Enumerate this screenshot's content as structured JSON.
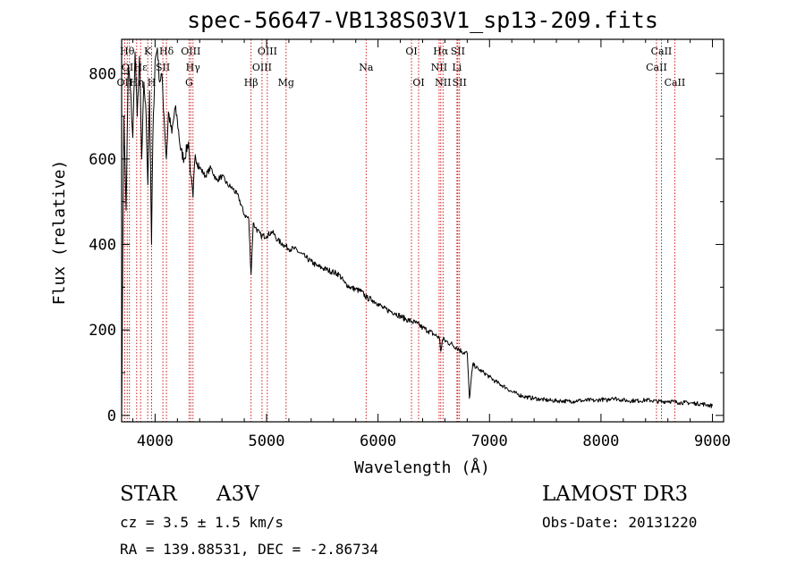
{
  "chart_data": {
    "type": "line",
    "title": "spec-56647-VB138S03V1_sp13-209.fits",
    "xlabel": "Wavelength (Å)",
    "ylabel": "Flux (relative)",
    "xlim": [
      3700,
      9100
    ],
    "ylim": [
      -15,
      880
    ],
    "xticks": [
      4000,
      5000,
      6000,
      7000,
      8000,
      9000
    ],
    "yticks": [
      0,
      200,
      400,
      600,
      800
    ],
    "grid": false,
    "series": [
      {
        "name": "spectrum",
        "x": [
          3700,
          3720,
          3740,
          3760,
          3780,
          3800,
          3820,
          3840,
          3860,
          3880,
          3900,
          3920,
          3935,
          3950,
          3968,
          3980,
          4000,
          4020,
          4040,
          4060,
          4080,
          4101,
          4120,
          4150,
          4180,
          4200,
          4230,
          4260,
          4300,
          4320,
          4340,
          4360,
          4400,
          4450,
          4500,
          4550,
          4600,
          4650,
          4700,
          4750,
          4800,
          4840,
          4861,
          4880,
          4900,
          4950,
          5000,
          5050,
          5100,
          5150,
          5200,
          5250,
          5300,
          5350,
          5400,
          5450,
          5500,
          5550,
          5600,
          5650,
          5700,
          5750,
          5800,
          5850,
          5900,
          5950,
          6000,
          6050,
          6100,
          6150,
          6200,
          6250,
          6300,
          6350,
          6400,
          6450,
          6500,
          6550,
          6563,
          6580,
          6600,
          6650,
          6700,
          6750,
          6800,
          6820,
          6850,
          6900,
          6950,
          7000,
          7050,
          7100,
          7150,
          7200,
          7250,
          7300,
          7350,
          7400,
          7450,
          7500,
          7550,
          7600,
          7650,
          7700,
          7750,
          7800,
          7850,
          7900,
          7950,
          8000,
          8050,
          8100,
          8150,
          8200,
          8250,
          8300,
          8350,
          8400,
          8450,
          8500,
          8550,
          8600,
          8650,
          8700,
          8750,
          8800,
          8850,
          8900,
          8950,
          9000
        ],
        "values": [
          0,
          700,
          480,
          820,
          760,
          650,
          850,
          700,
          840,
          600,
          780,
          700,
          540,
          760,
          400,
          650,
          830,
          860,
          780,
          800,
          700,
          600,
          710,
          660,
          720,
          690,
          620,
          600,
          640,
          560,
          510,
          610,
          580,
          560,
          580,
          550,
          560,
          540,
          530,
          510,
          470,
          460,
          330,
          450,
          440,
          420,
          420,
          430,
          410,
          400,
          390,
          390,
          380,
          370,
          360,
          350,
          345,
          340,
          335,
          330,
          310,
          300,
          295,
          290,
          275,
          270,
          262,
          250,
          245,
          240,
          232,
          225,
          220,
          215,
          205,
          198,
          190,
          182,
          150,
          178,
          175,
          168,
          160,
          150,
          145,
          40,
          120,
          108,
          100,
          90,
          80,
          72,
          65,
          55,
          50,
          45,
          42,
          40,
          38,
          36,
          35,
          34,
          34,
          33,
          33,
          35,
          34,
          36,
          34,
          38,
          35,
          42,
          38,
          36,
          34,
          35,
          34,
          36,
          35,
          33,
          32,
          34,
          32,
          30,
          30,
          29,
          28,
          27,
          25,
          22
        ]
      }
    ],
    "lines": [
      {
        "label": "OII",
        "w": 3727,
        "row": 2
      },
      {
        "label": "Hθ",
        "w": 3750,
        "row": 0
      },
      {
        "label": "OII",
        "w": 3770,
        "row": 1
      },
      {
        "label": "Hη",
        "w": 3835,
        "row": 2
      },
      {
        "label": "Hε",
        "w": 3870,
        "row": 1
      },
      {
        "label": "K",
        "w": 3934,
        "row": 0
      },
      {
        "label": "H",
        "w": 3969,
        "row": 2
      },
      {
        "label": "SII",
        "w": 4070,
        "row": 1
      },
      {
        "label": "Hδ",
        "w": 4102,
        "row": 0
      },
      {
        "label": "OIII",
        "w": 4320,
        "row": 0
      },
      {
        "label": "Hγ",
        "w": 4340,
        "row": 1
      },
      {
        "label": "G",
        "w": 4305,
        "row": 2
      },
      {
        "label": "Hβ",
        "w": 4861,
        "row": 2
      },
      {
        "label": "OIII",
        "w": 4959,
        "row": 1
      },
      {
        "label": "OIII",
        "w": 5007,
        "row": 0
      },
      {
        "label": "Mg",
        "w": 5175,
        "row": 2
      },
      {
        "label": "Na",
        "w": 5893,
        "row": 1
      },
      {
        "label": "OI",
        "w": 6300,
        "row": 0
      },
      {
        "label": "OI",
        "w": 6364,
        "row": 2
      },
      {
        "label": "NII",
        "w": 6548,
        "row": 1
      },
      {
        "label": "Hα",
        "w": 6563,
        "row": 0
      },
      {
        "label": "NII",
        "w": 6583,
        "row": 2
      },
      {
        "label": "SII",
        "w": 6716,
        "row": 0
      },
      {
        "label": "Li",
        "w": 6708,
        "row": 1
      },
      {
        "label": "SII",
        "w": 6731,
        "row": 2
      },
      {
        "label": "CaII",
        "w": 8498,
        "row": 1
      },
      {
        "label": "CaII",
        "w": 8542,
        "row": 0
      },
      {
        "label": "CaII",
        "w": 8662,
        "row": 2
      }
    ]
  },
  "info": {
    "class": "STAR",
    "subclass": "A3V",
    "survey": "LAMOST DR3",
    "cz": "cz = 3.5 ± 1.5 km/s",
    "obs_date": "Obs-Date: 20131220",
    "radec": "RA = 139.88531, DEC =  -2.86734"
  },
  "colors": {
    "axis": "#000000",
    "spectrum": "#000000",
    "line_marker": "#cc0000"
  }
}
